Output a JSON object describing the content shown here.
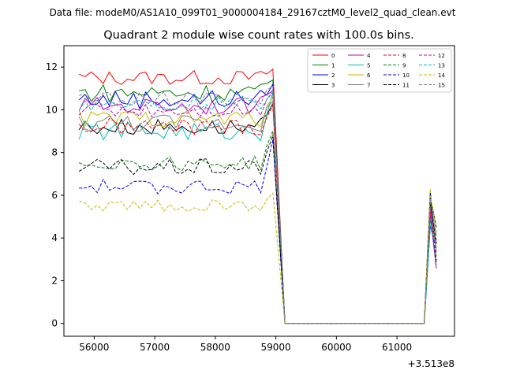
{
  "chart_data": {
    "type": "line",
    "suptitle": "Data file: modeM0/AS1A10_099T01_9000004184_29167cztM0_level2_quad_clean.evt",
    "title": "Quadrant 2 module wise count rates with 100.0s bins.",
    "xlabel": "",
    "ylabel": "",
    "x_offset_label": "+3.513e8",
    "xlim": [
      55500,
      61950
    ],
    "ylim": [
      -0.6,
      13.0
    ],
    "x_ticks": [
      56000,
      57000,
      58000,
      59000,
      60000,
      61000
    ],
    "x_tick_labels": [
      "56000",
      "57000",
      "58000",
      "59000",
      "60000",
      "61000"
    ],
    "y_ticks": [
      0,
      2,
      4,
      6,
      8,
      10,
      12
    ],
    "y_tick_labels": [
      "0",
      "2",
      "4",
      "6",
      "8",
      "10",
      "12"
    ],
    "legend": {
      "position": "top-right",
      "columns": 4
    },
    "gap": {
      "start": 59150,
      "end": 61450,
      "value": 0
    },
    "spike": {
      "x": [
        61550,
        61650
      ],
      "values": [
        6.3,
        4.2
      ]
    },
    "series": [
      {
        "name": "0",
        "color": "#ff0000",
        "style": "solid",
        "base": 11.5,
        "amp": 0.35,
        "end": 11.9
      },
      {
        "name": "1",
        "color": "#008000",
        "style": "solid",
        "base": 10.8,
        "amp": 0.45,
        "end": 11.4
      },
      {
        "name": "2",
        "color": "#0000ff",
        "style": "solid",
        "base": 10.5,
        "amp": 0.45,
        "end": 11.2
      },
      {
        "name": "3",
        "color": "#000000",
        "style": "solid",
        "base": 9.2,
        "amp": 0.4,
        "end": 10.3
      },
      {
        "name": "4",
        "color": "#bf00bf",
        "style": "solid",
        "base": 10.2,
        "amp": 0.4,
        "end": 10.9
      },
      {
        "name": "5",
        "color": "#00bfbf",
        "style": "solid",
        "base": 9.0,
        "amp": 0.45,
        "end": 10.8
      },
      {
        "name": "6",
        "color": "#bfbf00",
        "style": "solid",
        "base": 9.6,
        "amp": 0.4,
        "end": 10.6
      },
      {
        "name": "7",
        "color": "#808080",
        "style": "solid",
        "base": 9.4,
        "amp": 0.45,
        "end": 10.4
      },
      {
        "name": "8",
        "color": "#ff0000",
        "style": "dashed",
        "base": 9.2,
        "amp": 0.4,
        "end": 10.2
      },
      {
        "name": "9",
        "color": "#008000",
        "style": "dashed",
        "base": 7.5,
        "amp": 0.35,
        "end": 9.0
      },
      {
        "name": "10",
        "color": "#0000ff",
        "style": "dashed",
        "base": 6.4,
        "amp": 0.35,
        "end": 8.6
      },
      {
        "name": "11",
        "color": "#000000",
        "style": "dashed",
        "base": 7.3,
        "amp": 0.4,
        "end": 8.8
      },
      {
        "name": "12",
        "color": "#bf00bf",
        "style": "dashed",
        "base": 10.0,
        "amp": 0.35,
        "end": 10.8
      },
      {
        "name": "13",
        "color": "#00bfbf",
        "style": "dashed",
        "base": 10.3,
        "amp": 0.35,
        "end": 10.9
      },
      {
        "name": "14",
        "color": "#bfbf00",
        "style": "dashed",
        "base": 5.5,
        "amp": 0.3,
        "end": 6.1
      },
      {
        "name": "15",
        "color": "#808080",
        "style": "dashed",
        "base": 10.5,
        "amp": 0.35,
        "end": 11.1
      }
    ]
  }
}
